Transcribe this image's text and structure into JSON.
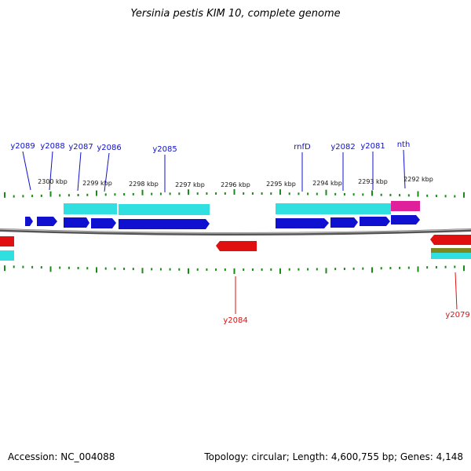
{
  "title": "Yersinia pestis KIM 10, complete genome",
  "footer": {
    "accession": "Accession: NC_004088",
    "stats": "Topology: circular; Length: 4,600,755 bp; Genes: 4,148"
  },
  "colors": {
    "forward": "#1010d0",
    "reverse": "#e01010",
    "cyan": "#30e0e0",
    "magenta": "#e0209a",
    "olive": "#7a8a20",
    "tick": "#1a8a1a",
    "backbone": "#777777"
  },
  "kbp_ticks": [
    "2300 kbp",
    "2299 kbp",
    "2298 kbp",
    "2297 kbp",
    "2296 kbp",
    "2295 kbp",
    "2294 kbp",
    "2293 kbp",
    "2292 kbp"
  ],
  "genes_forward": [
    "y2089",
    "y2088",
    "y2087",
    "y2086",
    "y2085",
    "rnfD",
    "y2082",
    "y2081",
    "nth"
  ],
  "genes_reverse": [
    "y2084",
    "y2079"
  ]
}
